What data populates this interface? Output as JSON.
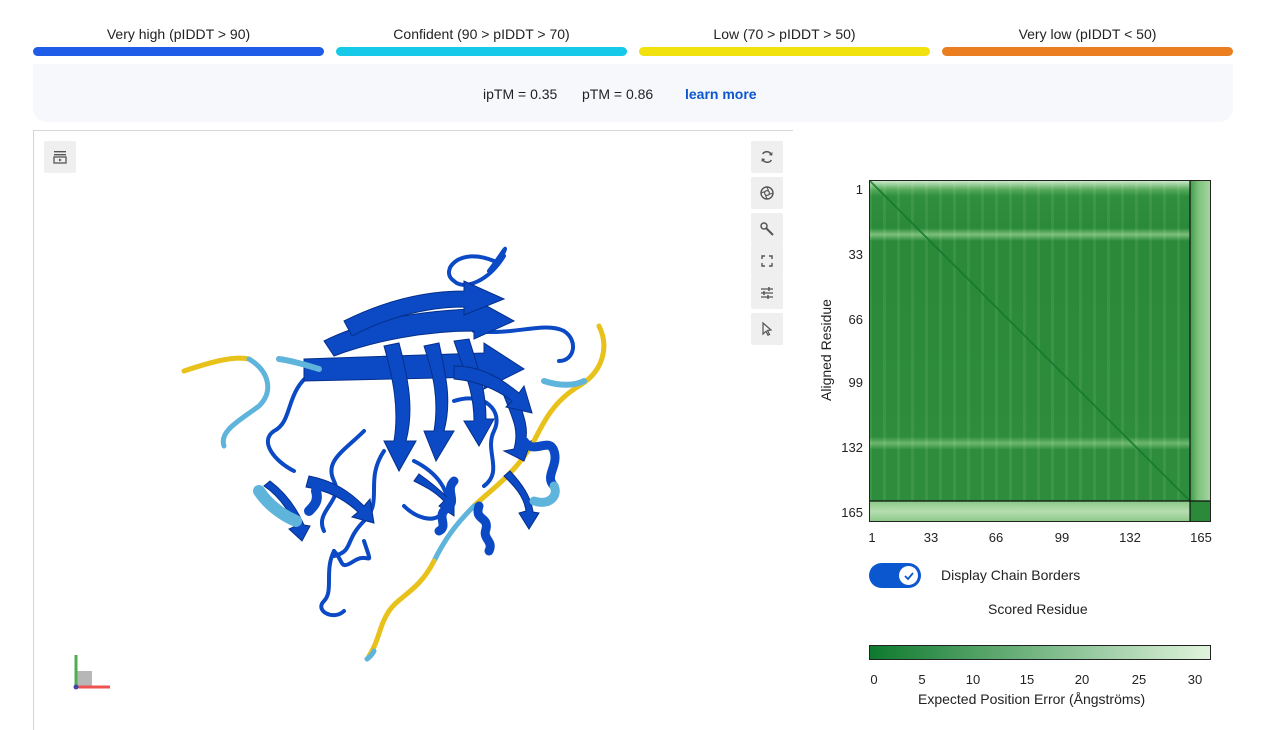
{
  "legend": [
    {
      "label": "Very high (pIDDT > 90)",
      "color": "#1f5ce8"
    },
    {
      "label": "Confident (90 > pIDDT > 70)",
      "color": "#16c9e8"
    },
    {
      "label": "Low (70 > pIDDT > 50)",
      "color": "#f1e20e"
    },
    {
      "label": "Very low (pIDDT < 50)",
      "color": "#ec7e22"
    }
  ],
  "metrics": {
    "iptm": "ipTM = 0.35",
    "ptm": "pTM = 0.86",
    "learn_more": "learn more"
  },
  "viewer": {
    "tools": [
      "rotate-icon",
      "camera-icon",
      "wrench-icon",
      "fullscreen-icon",
      "sliders-icon",
      "cursor-icon"
    ],
    "corner_tool": "play-stack-icon"
  },
  "pae": {
    "y_label": "Aligned Residue",
    "x_label": "Scored Residue",
    "ticks": [
      "1",
      "33",
      "66",
      "99",
      "132",
      "165"
    ],
    "chain_border_residue": 155,
    "total_residues": 165,
    "display_chain_borders": {
      "label": "Display Chain Borders",
      "checked": true
    },
    "colorbar": {
      "ticks": [
        "0",
        "5",
        "10",
        "15",
        "20",
        "25",
        "30"
      ],
      "label": "Expected Position Error (Ångströms)",
      "min_color": "#0e7a2d",
      "max_color": "#e1f4dd"
    }
  }
}
